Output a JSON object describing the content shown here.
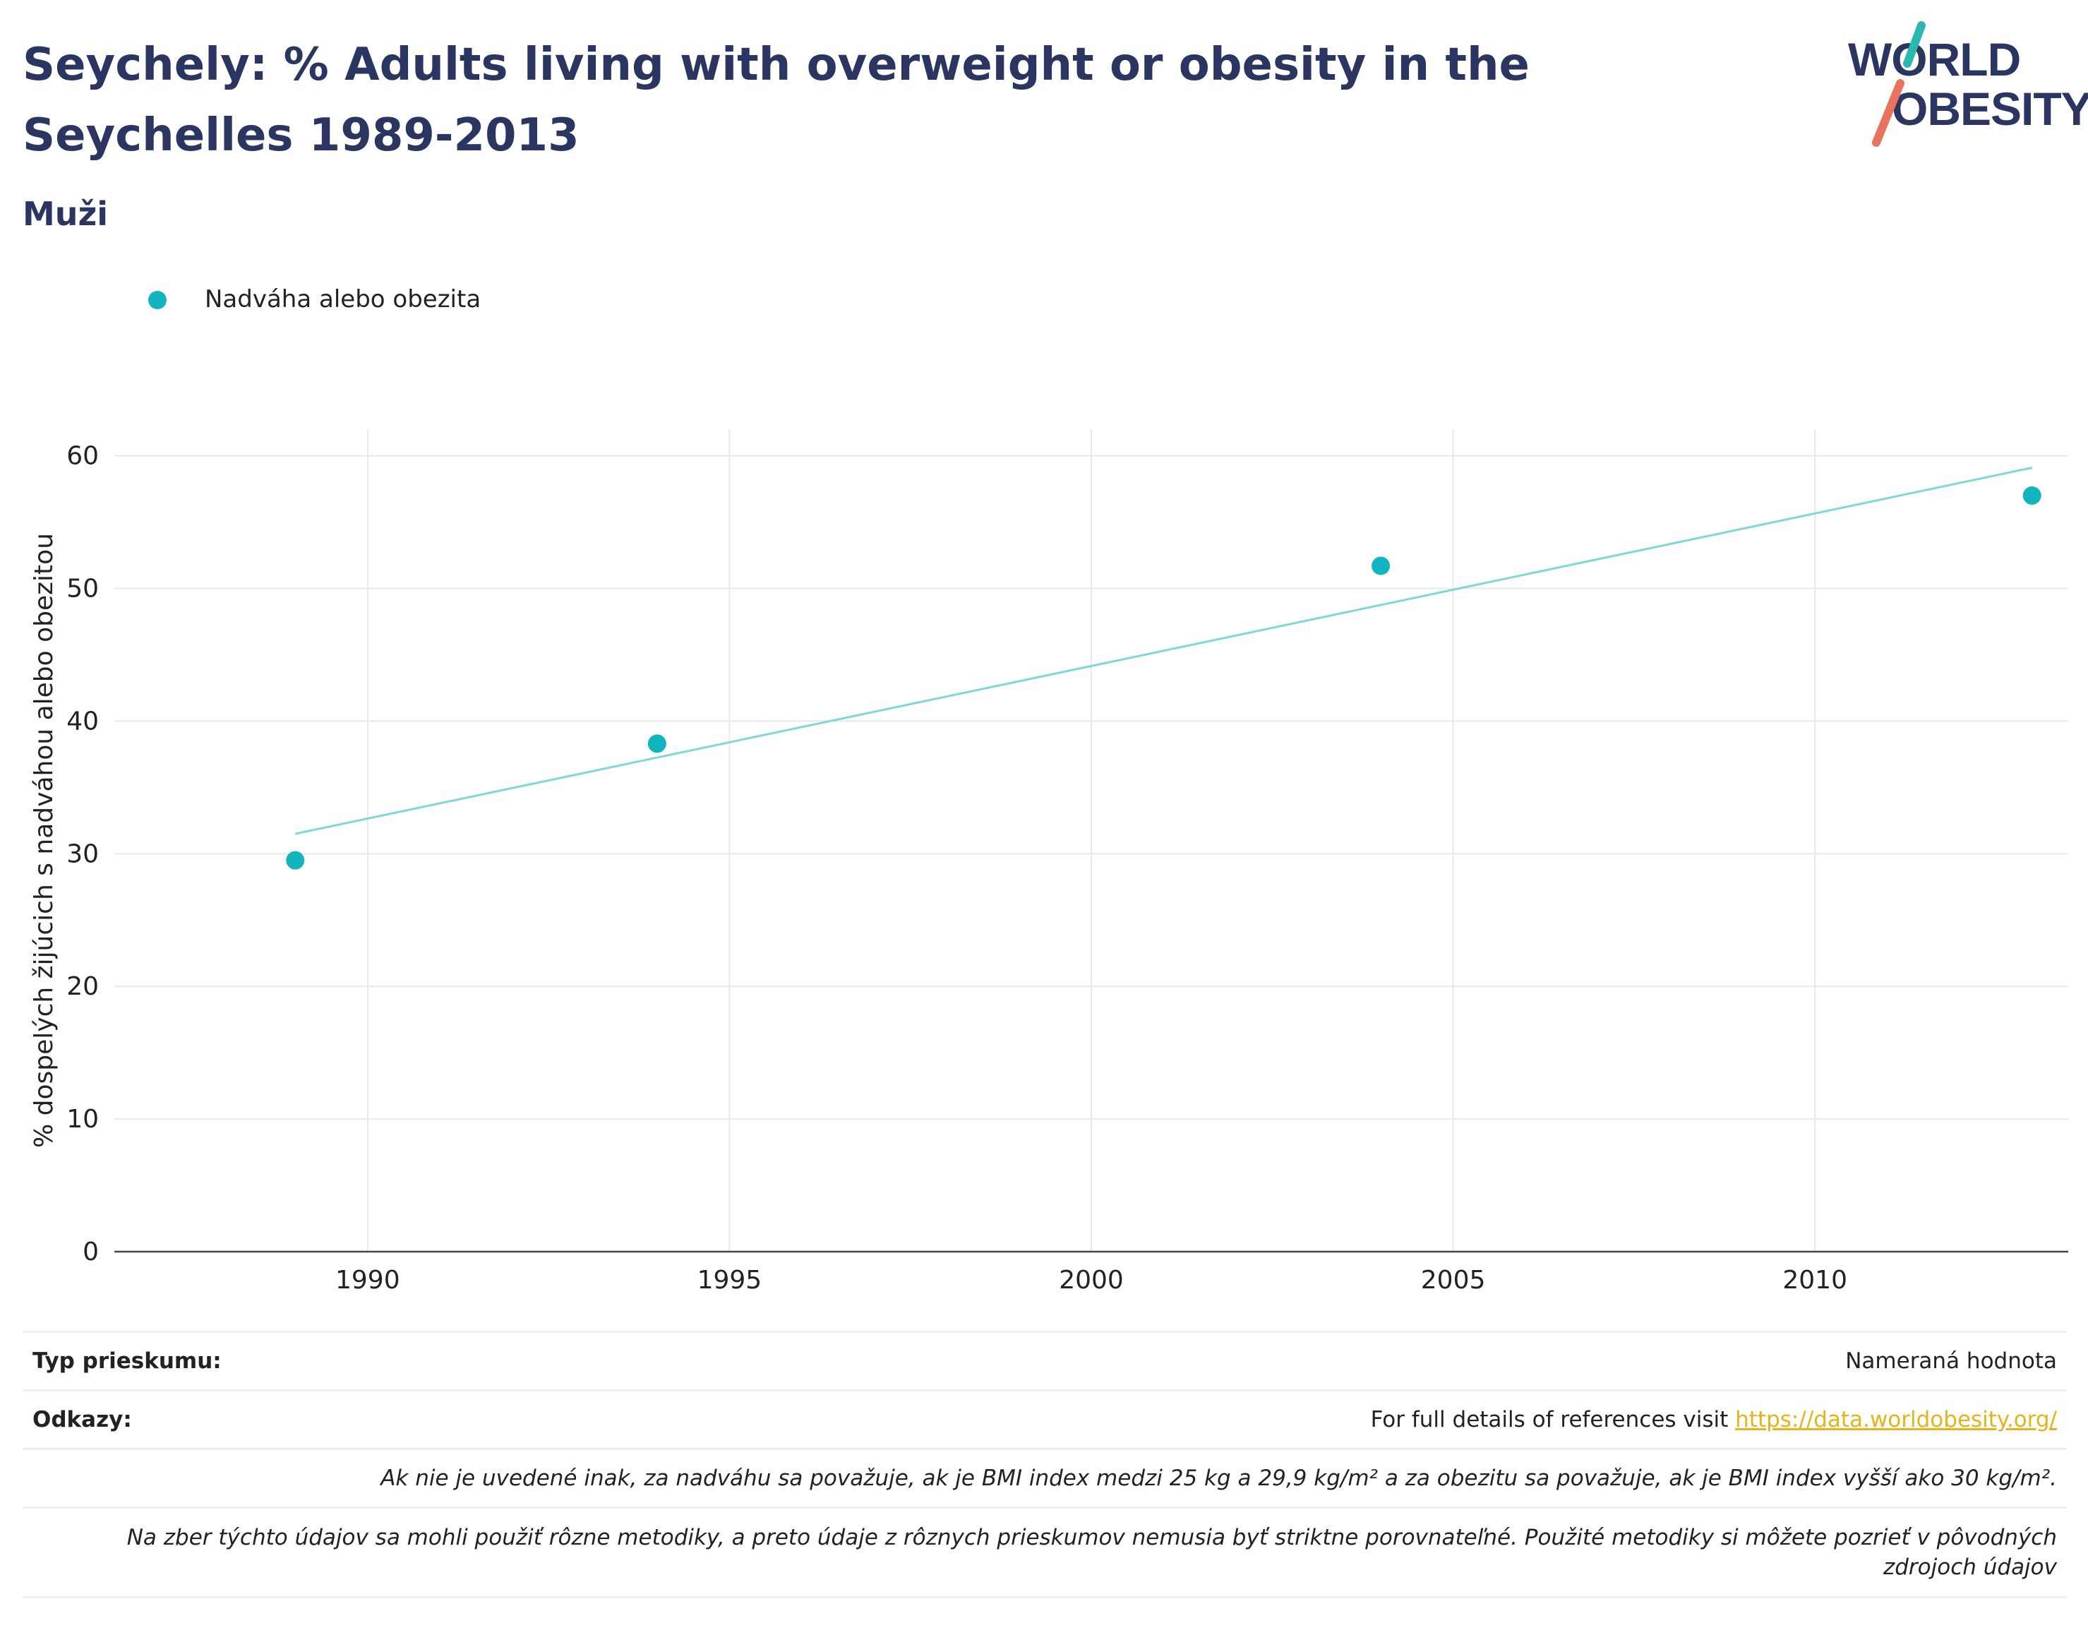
{
  "header": {
    "title": "Seychely: % Adults living with overweight or obesity in the Seychelles 1989-2013",
    "subtitle": "Muži"
  },
  "logo": {
    "line1": "WORLD",
    "line2": "OBESITY"
  },
  "colors": {
    "title": "#2b3562",
    "series": "#12b5bf",
    "trend": "#7fd6db",
    "link": "#e5b31c",
    "logo_teal": "#2cb8b0",
    "logo_coral": "#e8735f"
  },
  "chart_data": {
    "type": "scatter",
    "ylabel": "% dospelých žijúcich s nadváhou alebo obezitou",
    "xlabel": "",
    "xlim": [
      1986.5,
      2013.5
    ],
    "ylim": [
      0,
      62
    ],
    "xticks": [
      1990,
      1995,
      2000,
      2005,
      2010
    ],
    "yticks": [
      0,
      10,
      20,
      30,
      40,
      50,
      60
    ],
    "grid": true,
    "legend_position": "top-left",
    "series": [
      {
        "name": "Nadváha alebo obezita",
        "x": [
          1989,
          1994,
          2004,
          2013
        ],
        "y": [
          29.5,
          38.3,
          51.7,
          57.0
        ]
      }
    ],
    "trendline": {
      "x": [
        1989,
        2013
      ],
      "y": [
        31.5,
        59.1
      ]
    }
  },
  "footer": {
    "survey_type_label": "Typ prieskumu:",
    "survey_type_value": "Nameraná hodnota",
    "references_label": "Odkazy:",
    "references_text": "For full details of references visit ",
    "references_link": "https://data.worldobesity.org/",
    "note_bmi": "Ak nie je uvedené inak, za nadváhu sa považuje, ak je BMI index medzi 25 kg a 29,9 kg/m² a za obezitu sa považuje, ak je BMI index vyšší ako 30 kg/m².",
    "note_methods": "Na zber týchto údajov sa mohli použiť rôzne metodiky, a preto údaje z rôznych prieskumov nemusia byť striktne porovnateľné. Použité metodiky si môžete pozrieť v pôvodných zdrojoch údajov"
  }
}
